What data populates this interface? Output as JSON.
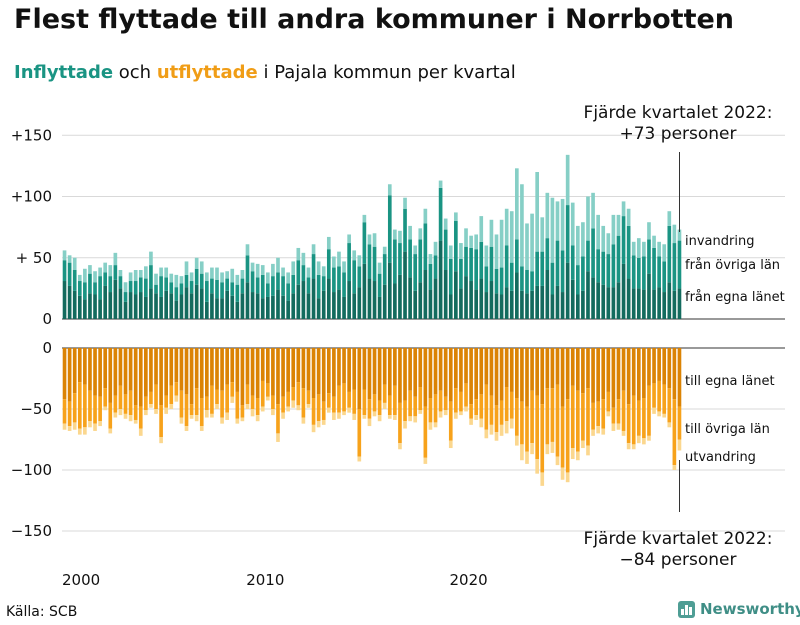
{
  "title": "Flest flyttade till andra kommuner i Norrbotten",
  "subtitle": {
    "in_word": "Inflyttade",
    "mid1": " och ",
    "out_word": "utflyttade",
    "rest": " i Pajala kommun per kvartal"
  },
  "source": "Källa: SCB",
  "brand": "Newsworthy",
  "colors": {
    "in_egna": "#136b5e",
    "in_ovriga": "#1a9483",
    "in_invandring": "#86cfc6",
    "out_egna": "#db8304",
    "out_ovriga": "#f7a21b",
    "out_utvandring": "#fbd78e",
    "brand": "#4f9e95"
  },
  "chart_data": {
    "type": "bar",
    "stacked": true,
    "x_start": "2000 Q1",
    "x_end": "2022 Q4",
    "x_ticks": [
      "2000",
      "2010",
      "2020"
    ],
    "y_ticks_upper": [
      "+150",
      "+100",
      "+ 50",
      "0"
    ],
    "y_ticks_lower": [
      "0",
      "−50",
      "−100",
      "−150"
    ],
    "ylim_upper": [
      0,
      150
    ],
    "ylim_lower": [
      -150,
      0
    ],
    "legend_in": [
      "invandring",
      "från övriga län",
      "från egna länet"
    ],
    "legend_out": [
      "till egna länet",
      "till övriga län",
      "utvandring"
    ],
    "annotation_top": [
      "Fjärde kvartalet 2022:",
      "+73 personer"
    ],
    "annotation_bottom": [
      "Fjärde kvartalet 2022:",
      "−84 personer"
    ],
    "inflyttade_egna_lanet": [
      31,
      27,
      23,
      19,
      16,
      21,
      20,
      16,
      27,
      22,
      32,
      25,
      14,
      22,
      20,
      22,
      18,
      25,
      21,
      18,
      23,
      21,
      15,
      20,
      26,
      21,
      28,
      25,
      14,
      21,
      17,
      17,
      23,
      19,
      14,
      21,
      30,
      22,
      21,
      17,
      18,
      19,
      24,
      19,
      15,
      21,
      28,
      31,
      21,
      33,
      17,
      23,
      33,
      22,
      24,
      18,
      31,
      21,
      26,
      45,
      33,
      31,
      18,
      28,
      46,
      29,
      36,
      55,
      34,
      23,
      30,
      40,
      24,
      33,
      64,
      40,
      20,
      39,
      25,
      35,
      31,
      24,
      33,
      22,
      31,
      21,
      20,
      26,
      23,
      38,
      23,
      21,
      23,
      27,
      27,
      40,
      20,
      27,
      22,
      46,
      32,
      20,
      23,
      39,
      34,
      30,
      28,
      26,
      26,
      30,
      45,
      33,
      25,
      25,
      24,
      37,
      24,
      26,
      22,
      30,
      23,
      25
    ],
    "inflyttade_ovriga_lan": [
      17,
      19,
      17,
      12,
      14,
      16,
      10,
      19,
      11,
      13,
      12,
      10,
      8,
      9,
      11,
      12,
      15,
      19,
      7,
      17,
      11,
      9,
      11,
      9,
      10,
      10,
      13,
      12,
      17,
      12,
      15,
      13,
      10,
      11,
      14,
      12,
      22,
      17,
      13,
      19,
      11,
      16,
      14,
      16,
      14,
      15,
      20,
      13,
      13,
      20,
      19,
      12,
      24,
      20,
      19,
      20,
      31,
      27,
      17,
      34,
      28,
      28,
      19,
      25,
      55,
      36,
      26,
      35,
      31,
      30,
      35,
      38,
      21,
      19,
      43,
      33,
      29,
      41,
      24,
      24,
      27,
      33,
      30,
      21,
      28,
      20,
      22,
      34,
      23,
      27,
      20,
      19,
      16,
      28,
      28,
      26,
      26,
      37,
      34,
      47,
      28,
      24,
      28,
      25,
      40,
      27,
      27,
      27,
      35,
      38,
      39,
      43,
      27,
      25,
      27,
      28,
      34,
      25,
      25,
      46,
      39,
      39
    ],
    "inflyttade_invandring": [
      8,
      6,
      10,
      5,
      11,
      7,
      9,
      7,
      8,
      9,
      10,
      5,
      8,
      7,
      9,
      6,
      10,
      11,
      9,
      7,
      8,
      7,
      10,
      6,
      11,
      7,
      9,
      10,
      7,
      9,
      10,
      8,
      6,
      11,
      8,
      7,
      9,
      7,
      11,
      8,
      9,
      10,
      12,
      7,
      9,
      11,
      10,
      10,
      8,
      8,
      11,
      8,
      10,
      9,
      12,
      9,
      7,
      8,
      9,
      6,
      8,
      11,
      9,
      6,
      9,
      8,
      10,
      9,
      11,
      7,
      9,
      12,
      8,
      11,
      6,
      9,
      11,
      7,
      13,
      15,
      10,
      12,
      21,
      17,
      22,
      28,
      39,
      30,
      42,
      58,
      67,
      38,
      47,
      65,
      28,
      37,
      53,
      32,
      42,
      41,
      35,
      32,
      28,
      36,
      29,
      28,
      21,
      17,
      24,
      17,
      12,
      14,
      11,
      16,
      12,
      14,
      10,
      12,
      14,
      12,
      15,
      9
    ],
    "utflyttade_egna_lanet": [
      -42,
      -44,
      -37,
      -28,
      -30,
      -35,
      -39,
      -40,
      -33,
      -45,
      -39,
      -31,
      -38,
      -35,
      -47,
      -48,
      -40,
      -36,
      -30,
      -47,
      -39,
      -31,
      -28,
      -35,
      -38,
      -46,
      -33,
      -41,
      -40,
      -31,
      -34,
      -35,
      -30,
      -28,
      -36,
      -47,
      -30,
      -39,
      -41,
      -27,
      -29,
      -39,
      -46,
      -40,
      -36,
      -32,
      -28,
      -33,
      -35,
      -41,
      -38,
      -44,
      -37,
      -40,
      -31,
      -29,
      -36,
      -34,
      -50,
      -34,
      -42,
      -38,
      -43,
      -30,
      -39,
      -31,
      -45,
      -43,
      -35,
      -40,
      -32,
      -48,
      -41,
      -38,
      -35,
      -40,
      -44,
      -33,
      -36,
      -29,
      -46,
      -42,
      -38,
      -30,
      -39,
      -47,
      -43,
      -32,
      -36,
      -41,
      -44,
      -48,
      -35,
      -39,
      -46,
      -33,
      -33,
      -30,
      -48,
      -42,
      -31,
      -35,
      -37,
      -33,
      -45,
      -44,
      -42,
      -36,
      -49,
      -42,
      -35,
      -46,
      -39,
      -43,
      -41,
      -31,
      -29,
      -27,
      -30,
      -33,
      -42,
      -48
    ],
    "utflyttade_ovriga_lan": [
      -20,
      -20,
      -24,
      -38,
      -35,
      -25,
      -23,
      -20,
      -15,
      -21,
      -14,
      -19,
      -16,
      -20,
      -12,
      -18,
      -11,
      -10,
      -20,
      -26,
      -10,
      -15,
      -11,
      -22,
      -26,
      -9,
      -22,
      -23,
      -11,
      -23,
      -12,
      -22,
      -23,
      -12,
      -22,
      -10,
      -16,
      -11,
      -14,
      -21,
      -11,
      -11,
      -24,
      -13,
      -12,
      -11,
      -19,
      -24,
      -11,
      -22,
      -22,
      -15,
      -12,
      -13,
      -22,
      -23,
      -13,
      -20,
      -39,
      -21,
      -16,
      -14,
      -12,
      -15,
      -16,
      -24,
      -33,
      -17,
      -21,
      -16,
      -19,
      -42,
      -20,
      -23,
      -17,
      -11,
      -32,
      -20,
      -16,
      -19,
      -12,
      -13,
      -20,
      -37,
      -24,
      -22,
      -20,
      -28,
      -22,
      -31,
      -35,
      -37,
      -43,
      -52,
      -56,
      -46,
      -44,
      -59,
      -50,
      -60,
      -51,
      -50,
      -39,
      -47,
      -22,
      -20,
      -24,
      -16,
      -13,
      -20,
      -33,
      -32,
      -40,
      -29,
      -33,
      -41,
      -20,
      -25,
      -24,
      -28,
      -54,
      -27
    ],
    "utflyttade_utvandring": [
      -5,
      -4,
      -6,
      -5,
      -6,
      -5,
      -6,
      -4,
      -3,
      -4,
      -4,
      -5,
      -4,
      -5,
      -3,
      -6,
      -4,
      -3,
      -4,
      -5,
      -5,
      -4,
      -5,
      -5,
      -4,
      -3,
      -5,
      -4,
      -6,
      -3,
      -4,
      -5,
      -6,
      -5,
      -4,
      -3,
      -4,
      -6,
      -5,
      -4,
      -3,
      -5,
      -7,
      -5,
      -4,
      -6,
      -4,
      -5,
      -3,
      -6,
      -5,
      -4,
      -4,
      -6,
      -5,
      -3,
      -4,
      -5,
      -4,
      -3,
      -6,
      -4,
      -5,
      -5,
      -3,
      -4,
      -5,
      -6,
      -4,
      -5,
      -3,
      -5,
      -6,
      -4,
      -5,
      -4,
      -6,
      -5,
      -3,
      -4,
      -5,
      -4,
      -7,
      -7,
      -8,
      -7,
      -9,
      -10,
      -8,
      -8,
      -13,
      -10,
      -9,
      -12,
      -11,
      -8,
      -9,
      -7,
      -10,
      -8,
      -9,
      -7,
      -6,
      -8,
      -5,
      -6,
      -5,
      -4,
      -6,
      -5,
      -4,
      -5,
      -4,
      -6,
      -5,
      -4,
      -5,
      -4,
      -3,
      -4,
      -4,
      -9
    ]
  }
}
